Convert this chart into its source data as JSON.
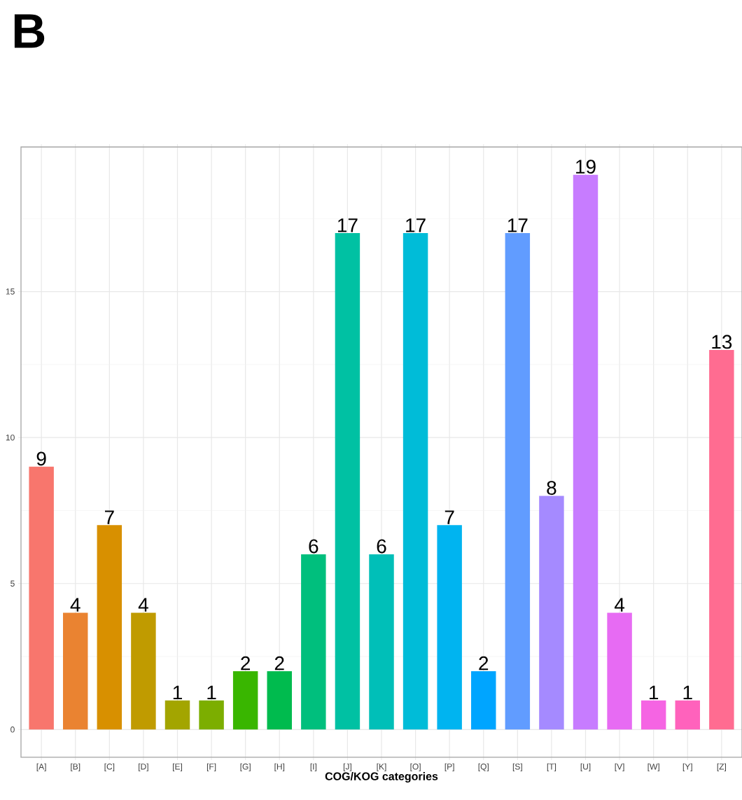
{
  "chart_data": {
    "type": "bar",
    "title": "B",
    "xlabel": "**COG/KOG categories**",
    "categories": [
      "[A]",
      "[B]",
      "[C]",
      "[D]",
      "[E]",
      "[F]",
      "[G]",
      "[H]",
      "[I]",
      "[J]",
      "[K]",
      "[O]",
      "[P]",
      "[Q]",
      "[S]",
      "[T]",
      "[U]",
      "[V]",
      "[W]",
      "[Y]",
      "[Z]"
    ],
    "values": [
      9,
      4,
      7,
      4,
      1,
      1,
      2,
      2,
      6,
      17,
      6,
      17,
      7,
      2,
      17,
      8,
      19,
      4,
      1,
      1,
      13
    ],
    "colors": [
      "#F8766D",
      "#EA8331",
      "#D89000",
      "#C09B00",
      "#A3A500",
      "#7CAE00",
      "#39B600",
      "#00BB4E",
      "#00BF7D",
      "#00C1A3",
      "#00BFB8",
      "#00BCD8",
      "#00B4F0",
      "#00A5FF",
      "#619CFF",
      "#A58AFF",
      "#C77CFF",
      "#E76BF3",
      "#F564E3",
      "#FF62BC",
      "#FF6C91"
    ],
    "ylim": [
      -0.95,
      19.95
    ],
    "yticks": [
      0,
      5,
      10,
      15
    ],
    "grid": true,
    "data_labels": true
  }
}
